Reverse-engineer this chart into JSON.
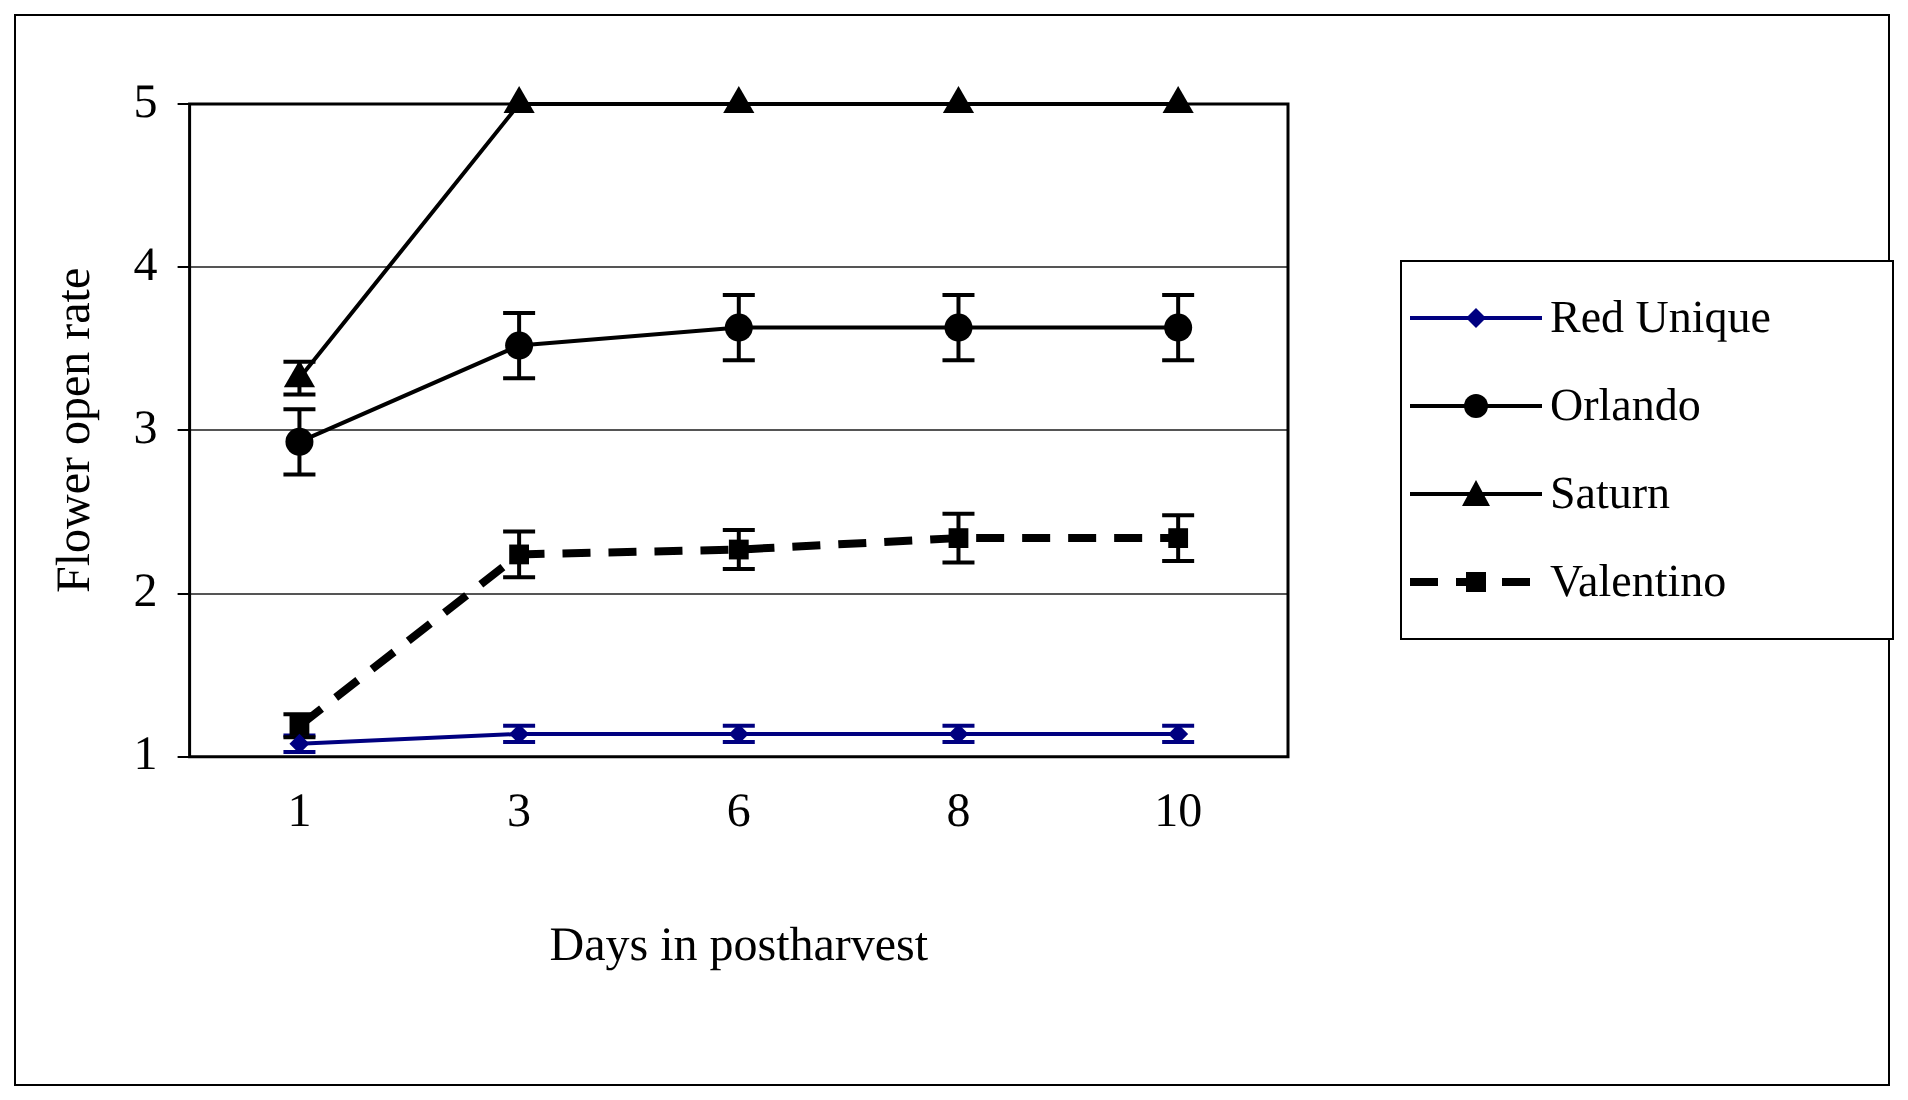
{
  "chart_data": {
    "type": "line",
    "xlabel": "Days in postharvest",
    "ylabel": "Flower open rate",
    "categories": [
      "1",
      "3",
      "6",
      "8",
      "10"
    ],
    "ylim": [
      1,
      5
    ],
    "yticks": [
      1,
      2,
      3,
      4,
      5
    ],
    "grid": "y",
    "legend": "right",
    "series": [
      {
        "name": "Red Unique",
        "color": "#000080",
        "marker": "diamond",
        "line_style": "solid",
        "values": [
          1.08,
          1.14,
          1.14,
          1.14,
          1.14
        ],
        "errors": [
          0.05,
          0.05,
          0.05,
          0.05,
          0.05
        ]
      },
      {
        "name": "Orlando",
        "color": "#000000",
        "marker": "circle",
        "line_style": "solid",
        "values": [
          2.93,
          3.52,
          3.63,
          3.63,
          3.63
        ],
        "errors": [
          0.2,
          0.2,
          0.2,
          0.2,
          0.2
        ]
      },
      {
        "name": "Saturn",
        "color": "#000000",
        "marker": "triangle",
        "line_style": "solid",
        "values": [
          3.32,
          5,
          5,
          5,
          5
        ],
        "errors": [
          0.1,
          null,
          null,
          null,
          null
        ]
      },
      {
        "name": "Valentino",
        "color": "#000000",
        "marker": "square",
        "line_style": "dashed",
        "values": [
          1.19,
          2.24,
          2.27,
          2.34,
          2.34
        ],
        "errors": [
          0.07,
          0.14,
          0.12,
          0.15,
          0.14
        ]
      }
    ]
  }
}
